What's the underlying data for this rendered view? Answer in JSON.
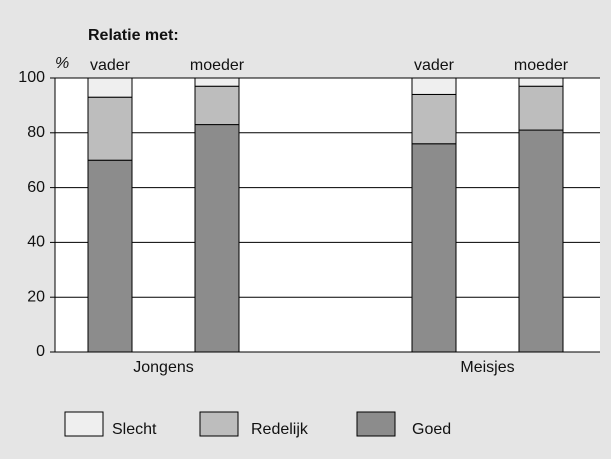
{
  "chart_data": {
    "type": "bar",
    "stacked": true,
    "title": "Relatie met:",
    "y_label": "%",
    "categories": [
      "vader",
      "moeder",
      "vader",
      "moeder"
    ],
    "groups": [
      "Jongens",
      "Meisjes"
    ],
    "series": [
      {
        "name": "Goed",
        "color": "#8c8c8c",
        "values": [
          70,
          83,
          76,
          81
        ]
      },
      {
        "name": "Redelijk",
        "color": "#bdbdbd",
        "values": [
          23,
          14,
          18,
          16
        ]
      },
      {
        "name": "Slecht",
        "color": "#efefef",
        "values": [
          7,
          3,
          6,
          3
        ]
      }
    ],
    "legend_order": [
      "Slecht",
      "Redelijk",
      "Goed"
    ],
    "ylim": [
      0,
      100
    ],
    "yticks": [
      0,
      20,
      40,
      60,
      80,
      100
    ],
    "grid": true
  }
}
